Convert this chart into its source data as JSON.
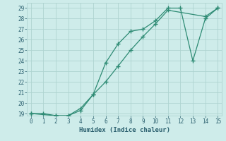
{
  "xlabel": "Humidex (Indice chaleur)",
  "line1_x": [
    0,
    1,
    2,
    3,
    4,
    5,
    6,
    7,
    8,
    9,
    10,
    11,
    12,
    13,
    14,
    15
  ],
  "line1_y": [
    19,
    19,
    18.8,
    18.8,
    19.3,
    20.8,
    23.8,
    25.6,
    26.8,
    27.0,
    27.8,
    29,
    29,
    24,
    28,
    29
  ],
  "line2_x": [
    0,
    2,
    3,
    4,
    5,
    6,
    7,
    8,
    9,
    10,
    11,
    14,
    15
  ],
  "line2_y": [
    19,
    18.8,
    18.8,
    19.5,
    20.8,
    22.0,
    23.5,
    25.0,
    26.3,
    27.5,
    28.8,
    28.2,
    29
  ],
  "line_color": "#2e8b74",
  "background_color": "#ceecea",
  "grid_color": "#aed4d0",
  "xlim": [
    0,
    15
  ],
  "ylim": [
    19,
    29
  ],
  "xticks": [
    0,
    1,
    2,
    3,
    4,
    5,
    6,
    7,
    8,
    9,
    10,
    11,
    12,
    13,
    14,
    15
  ],
  "yticks": [
    19,
    20,
    21,
    22,
    23,
    24,
    25,
    26,
    27,
    28,
    29
  ]
}
